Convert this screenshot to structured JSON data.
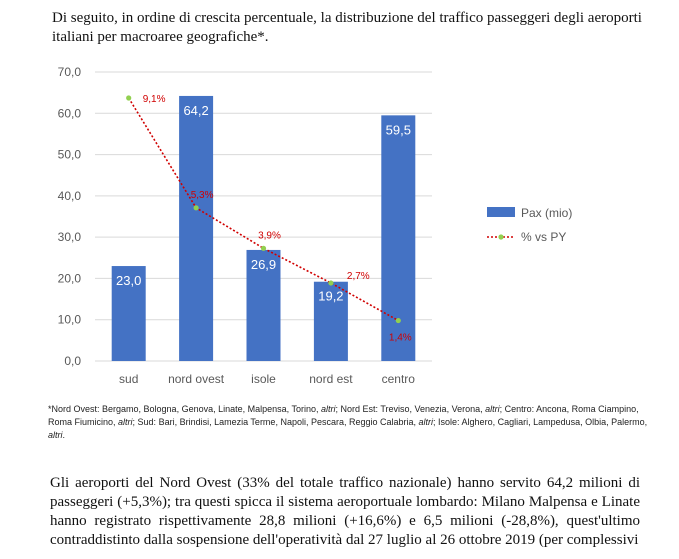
{
  "intro_text": "Di seguito, in ordine di crescita percentuale, la distribuzione del traffico passeggeri degli aeroporti italiani per macroaree geografiche*.",
  "chart_data": {
    "type": "bar",
    "categories": [
      "sud",
      "nord ovest",
      "isole",
      "nord est",
      "centro"
    ],
    "series": [
      {
        "name": "Pax (mio)",
        "type": "bar",
        "values": [
          23.0,
          64.2,
          26.9,
          19.2,
          59.5
        ],
        "labels": [
          "23,0",
          "64,2",
          "26,9",
          "19,2",
          "59,5"
        ],
        "color": "#4472C4"
      },
      {
        "name": "% vs PY",
        "type": "line",
        "values": [
          9.1,
          5.3,
          3.9,
          2.7,
          1.4
        ],
        "labels": [
          "9,1%",
          "5,3%",
          "3,9%",
          "2,7%",
          "1,4%"
        ],
        "color": "#D00000",
        "marker_color": "#92D050"
      }
    ],
    "y_ticks": [
      "0,0",
      "10,0",
      "20,0",
      "30,0",
      "40,0",
      "50,0",
      "60,0",
      "70,0"
    ],
    "ylim": [
      0,
      70
    ],
    "legend_position": "right",
    "grid": true
  },
  "footnote": {
    "segments": [
      {
        "text": "*Nord Ovest: Bergamo, Bologna, Genova, Linate, Malpensa, Torino, ",
        "italic": false
      },
      {
        "text": "altri",
        "italic": true
      },
      {
        "text": "; Nord Est: Treviso, Venezia, Verona, ",
        "italic": false
      },
      {
        "text": "altri",
        "italic": true
      },
      {
        "text": "; Centro: Ancona, Roma Ciampino, Roma Fiumicino, ",
        "italic": false
      },
      {
        "text": "altri",
        "italic": true
      },
      {
        "text": "; Sud: Bari, Brindisi, Lamezia Terme, Napoli, Pescara, Reggio Calabria, ",
        "italic": false
      },
      {
        "text": "altri",
        "italic": true
      },
      {
        "text": "; Isole: Alghero, Cagliari, Lampedusa, Olbia, Palermo, ",
        "italic": false
      },
      {
        "text": "altri",
        "italic": true
      },
      {
        "text": ".",
        "italic": false
      }
    ]
  },
  "body_text": "Gli aeroporti del Nord Ovest (33% del totale traffico nazionale) hanno servito 64,2 milioni di passeggeri (+5,3%); tra questi spicca il sistema aeroportuale lombardo: Milano Malpensa e Linate hanno registrato rispettivamente 28,8 milioni (+16,6%) e 6,5 milioni (-28,8%), quest'ultimo contraddistinto dalla sospensione dell'operatività dal 27 luglio al 26 ottobre 2019 (per complessivi"
}
